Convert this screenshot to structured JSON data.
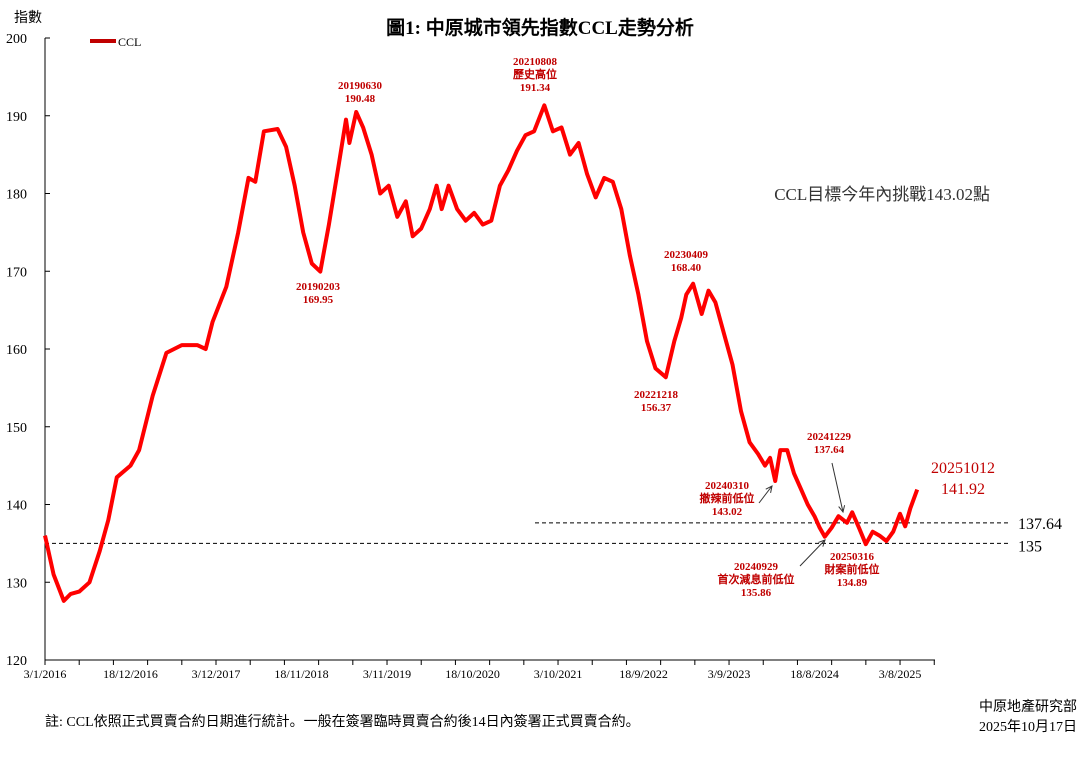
{
  "chart_data": {
    "type": "line",
    "title": "圖1: 中原城市領先指數CCL走勢分析",
    "ylabel": "指數",
    "xlabel": "",
    "ylim": [
      120,
      200
    ],
    "yticks": [
      120,
      130,
      140,
      150,
      160,
      170,
      180,
      190,
      200
    ],
    "xticks": [
      "3/1/2016",
      "18/12/2016",
      "3/12/2017",
      "18/11/2018",
      "3/11/2019",
      "18/10/2020",
      "3/10/2021",
      "18/9/2022",
      "3/9/2023",
      "18/8/2024",
      "3/8/2025"
    ],
    "grid": false,
    "legend": {
      "placement": "top-left",
      "entries": [
        "CCL"
      ]
    },
    "colors": {
      "line": "#ff0000",
      "annotation": "#c00000",
      "reference": "#000000"
    },
    "series": [
      {
        "name": "CCL",
        "points": [
          [
            "2016-01-03",
            136
          ],
          [
            "2016-02-07",
            131
          ],
          [
            "2016-03-20",
            127.6
          ],
          [
            "2016-04-17",
            128.5
          ],
          [
            "2016-05-22",
            128.8
          ],
          [
            "2016-07-03",
            130
          ],
          [
            "2016-08-14",
            134
          ],
          [
            "2016-09-18",
            138
          ],
          [
            "2016-10-23",
            143.5
          ],
          [
            "2016-12-18",
            145
          ],
          [
            "2017-01-22",
            147
          ],
          [
            "2017-03-19",
            154
          ],
          [
            "2017-05-14",
            159.5
          ],
          [
            "2017-07-16",
            160.5
          ],
          [
            "2017-09-17",
            160.5
          ],
          [
            "2017-10-22",
            160
          ],
          [
            "2017-11-19",
            163.5
          ],
          [
            "2018-01-14",
            168
          ],
          [
            "2018-03-04",
            175
          ],
          [
            "2018-04-15",
            182
          ],
          [
            "2018-05-13",
            181.5
          ],
          [
            "2018-06-17",
            188
          ],
          [
            "2018-08-12",
            188.3
          ],
          [
            "2018-09-16",
            186
          ],
          [
            "2018-10-21",
            181
          ],
          [
            "2018-11-25",
            175
          ],
          [
            "2018-12-30",
            171
          ],
          [
            "2019-02-03",
            169.95
          ],
          [
            "2019-03-10",
            176
          ],
          [
            "2019-04-21",
            184
          ],
          [
            "2019-05-19",
            189.5
          ],
          [
            "2019-06-02",
            186.5
          ],
          [
            "2019-06-30",
            190.48
          ],
          [
            "2019-07-28",
            188.5
          ],
          [
            "2019-09-01",
            185
          ],
          [
            "2019-10-06",
            180
          ],
          [
            "2019-11-10",
            181
          ],
          [
            "2019-12-15",
            177
          ],
          [
            "2020-01-19",
            179
          ],
          [
            "2020-02-16",
            174.5
          ],
          [
            "2020-03-22",
            175.5
          ],
          [
            "2020-04-26",
            178
          ],
          [
            "2020-05-24",
            181
          ],
          [
            "2020-06-14",
            178
          ],
          [
            "2020-07-12",
            181
          ],
          [
            "2020-08-16",
            178
          ],
          [
            "2020-09-20",
            176.5
          ],
          [
            "2020-10-25",
            177.5
          ],
          [
            "2020-11-29",
            176
          ],
          [
            "2021-01-03",
            176.5
          ],
          [
            "2021-02-07",
            181
          ],
          [
            "2021-03-14",
            183
          ],
          [
            "2021-04-18",
            185.5
          ],
          [
            "2021-05-23",
            187.5
          ],
          [
            "2021-06-27",
            188
          ],
          [
            "2021-08-08",
            191.34
          ],
          [
            "2021-09-12",
            188
          ],
          [
            "2021-10-17",
            188.5
          ],
          [
            "2021-11-21",
            185
          ],
          [
            "2021-12-26",
            186.5
          ],
          [
            "2022-01-30",
            182.5
          ],
          [
            "2022-03-06",
            179.5
          ],
          [
            "2022-04-10",
            182
          ],
          [
            "2022-05-15",
            181.5
          ],
          [
            "2022-06-19",
            178
          ],
          [
            "2022-07-24",
            172
          ],
          [
            "2022-08-28",
            167
          ],
          [
            "2022-10-02",
            161
          ],
          [
            "2022-11-06",
            157.5
          ],
          [
            "2022-12-18",
            156.37
          ],
          [
            "2023-01-22",
            161
          ],
          [
            "2023-02-19",
            164
          ],
          [
            "2023-03-12",
            167
          ],
          [
            "2023-04-09",
            168.4
          ],
          [
            "2023-05-14",
            164.5
          ],
          [
            "2023-06-11",
            167.5
          ],
          [
            "2023-07-09",
            166
          ],
          [
            "2023-08-13",
            162
          ],
          [
            "2023-09-17",
            158
          ],
          [
            "2023-10-22",
            152
          ],
          [
            "2023-11-26",
            148
          ],
          [
            "2023-12-31",
            146.5
          ],
          [
            "2024-01-28",
            145
          ],
          [
            "2024-02-18",
            146
          ],
          [
            "2024-03-10",
            143.02
          ],
          [
            "2024-03-31",
            147
          ],
          [
            "2024-04-28",
            147
          ],
          [
            "2024-05-26",
            144
          ],
          [
            "2024-06-23",
            142
          ],
          [
            "2024-07-21",
            140
          ],
          [
            "2024-08-18",
            138.5
          ],
          [
            "2024-09-08",
            137
          ],
          [
            "2024-09-29",
            135.86
          ],
          [
            "2024-10-27",
            137
          ],
          [
            "2024-11-24",
            138.5
          ],
          [
            "2024-12-29",
            137.64
          ],
          [
            "2025-01-19",
            139
          ],
          [
            "2025-02-16",
            137
          ],
          [
            "2025-03-16",
            134.89
          ],
          [
            "2025-04-13",
            136.5
          ],
          [
            "2025-05-11",
            136
          ],
          [
            "2025-06-08",
            135.3
          ],
          [
            "2025-07-06",
            136.5
          ],
          [
            "2025-08-03",
            138.8
          ],
          [
            "2025-08-24",
            137.2
          ],
          [
            "2025-09-14",
            139.5
          ],
          [
            "2025-10-12",
            141.92
          ]
        ]
      }
    ],
    "reference_lines": [
      {
        "value": 137.64,
        "label": "137.64"
      },
      {
        "value": 135,
        "label": "135"
      }
    ],
    "annotations": [
      {
        "lines": [
          "20190630",
          "190.48"
        ]
      },
      {
        "lines": [
          "20190203",
          "169.95"
        ]
      },
      {
        "lines": [
          "20210808",
          "歷史高位",
          "191.34"
        ]
      },
      {
        "lines": [
          "20230409",
          "168.40"
        ]
      },
      {
        "lines": [
          "20221218",
          "156.37"
        ]
      },
      {
        "lines": [
          "20240310",
          "撤辣前低位",
          "143.02"
        ]
      },
      {
        "lines": [
          "20241229",
          "137.64"
        ]
      },
      {
        "lines": [
          "20240929",
          "首次減息前低位",
          "135.86"
        ]
      },
      {
        "lines": [
          "20250316",
          "財案前低位",
          "134.89"
        ]
      },
      {
        "lines": [
          "20251012",
          "141.92"
        ]
      }
    ],
    "target_note": "CCL目標今年內挑戰143.02點"
  },
  "footer": {
    "note": "註: CCL依照正式買賣合約日期進行統計。一般在簽署臨時買賣合約後14日內簽署正式買賣合約。",
    "source": "中原地產研究部",
    "date": "2025年10月17日"
  }
}
